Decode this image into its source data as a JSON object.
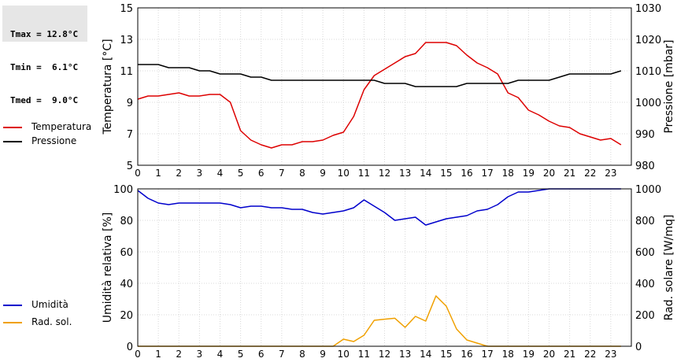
{
  "stats": {
    "tmax": "Tmax = 12.8°C",
    "tmin": "Tmin =  6.1°C",
    "tmed": "Tmed =  9.0°C"
  },
  "chart_data": [
    {
      "type": "line",
      "xlabel": "",
      "ylabel": "Temperatura [°C]",
      "ylabel_right": "Pressione [mbar]",
      "xlim": [
        0,
        24
      ],
      "ylim": [
        5,
        15
      ],
      "ylim_right": [
        980,
        1030
      ],
      "x_ticks": [
        "0",
        "1",
        "2",
        "3",
        "4",
        "5",
        "6",
        "7",
        "8",
        "9",
        "10",
        "11",
        "12",
        "13",
        "14",
        "15",
        "16",
        "17",
        "18",
        "19",
        "20",
        "21",
        "22",
        "23"
      ],
      "y_ticks": [
        "5",
        "7",
        "9",
        "11",
        "13",
        "15"
      ],
      "y_ticks_right": [
        "980",
        "990",
        "1000",
        "1010",
        "1020",
        "1030"
      ],
      "grid": true,
      "legend": "left",
      "series": [
        {
          "name": "Temperatura",
          "color": "#dd0000",
          "axis": "left",
          "x": [
            0,
            0.5,
            1,
            1.5,
            2,
            2.5,
            3,
            3.5,
            4,
            4.5,
            5,
            5.5,
            6,
            6.5,
            7,
            7.5,
            8,
            8.5,
            9,
            9.5,
            10,
            10.5,
            11,
            11.5,
            12,
            12.5,
            13,
            13.5,
            14,
            14.5,
            15,
            15.5,
            16,
            16.5,
            17,
            17.5,
            18,
            18.5,
            19,
            19.5,
            20,
            20.5,
            21,
            21.5,
            22,
            22.5,
            23,
            23.5
          ],
          "values": [
            9.2,
            9.4,
            9.4,
            9.5,
            9.6,
            9.4,
            9.4,
            9.5,
            9.5,
            9.0,
            7.2,
            6.6,
            6.3,
            6.1,
            6.3,
            6.3,
            6.5,
            6.5,
            6.6,
            6.9,
            7.1,
            8.1,
            9.8,
            10.7,
            11.1,
            11.5,
            11.9,
            12.1,
            12.8,
            12.8,
            12.8,
            12.6,
            12.0,
            11.5,
            11.2,
            10.8,
            9.6,
            9.3,
            8.5,
            8.2,
            7.8,
            7.5,
            7.4,
            7.0,
            6.8,
            6.6,
            6.7,
            6.3
          ]
        },
        {
          "name": "Pressione",
          "color": "#000000",
          "axis": "right",
          "x": [
            0,
            1,
            1.5,
            2,
            2.5,
            3,
            3.5,
            4,
            4.5,
            5,
            5.5,
            6,
            6.5,
            7,
            8,
            9,
            10,
            11,
            11.5,
            12,
            12.5,
            13,
            13.5,
            14,
            15,
            15.5,
            16,
            17,
            17.5,
            18,
            18.5,
            19,
            20,
            20.5,
            21,
            22,
            23,
            23.5
          ],
          "values": [
            1012,
            1012,
            1011,
            1011,
            1011,
            1010,
            1010,
            1009,
            1009,
            1009,
            1008,
            1008,
            1007,
            1007,
            1007,
            1007,
            1007,
            1007,
            1007,
            1006,
            1006,
            1006,
            1005,
            1005,
            1005,
            1005,
            1006,
            1006,
            1006,
            1006,
            1007,
            1007,
            1007,
            1008,
            1009,
            1009,
            1009,
            1010
          ]
        }
      ]
    },
    {
      "type": "line",
      "xlabel": "",
      "ylabel": "Umidità relativa [%]",
      "ylabel_right": "Rad. solare [W/mq]",
      "xlim": [
        0,
        24
      ],
      "ylim": [
        0,
        100
      ],
      "ylim_right": [
        0,
        1000
      ],
      "x_ticks": [
        "0",
        "1",
        "2",
        "3",
        "4",
        "5",
        "6",
        "7",
        "8",
        "9",
        "10",
        "11",
        "12",
        "13",
        "14",
        "15",
        "16",
        "17",
        "18",
        "19",
        "20",
        "21",
        "22",
        "23"
      ],
      "y_ticks": [
        "0",
        "20",
        "40",
        "60",
        "80",
        "100"
      ],
      "y_ticks_right": [
        "0",
        "200",
        "400",
        "600",
        "800",
        "1000"
      ],
      "grid": true,
      "legend": "left",
      "series": [
        {
          "name": "Umidità",
          "color": "#0000cc",
          "axis": "left",
          "x": [
            0,
            0.5,
            1,
            1.5,
            2,
            2.5,
            3,
            3.5,
            4,
            4.5,
            5,
            5.5,
            6,
            6.5,
            7,
            7.5,
            8,
            8.5,
            9,
            9.5,
            10,
            10.5,
            11,
            11.5,
            12,
            12.5,
            13,
            13.5,
            14,
            14.5,
            15,
            15.5,
            16,
            16.5,
            17,
            17.5,
            18,
            18.5,
            19,
            19.5,
            20,
            20.5,
            21,
            21.5,
            22,
            22.5,
            23,
            23.5
          ],
          "values": [
            99,
            94,
            91,
            90,
            91,
            91,
            91,
            91,
            91,
            90,
            88,
            89,
            89,
            88,
            88,
            87,
            87,
            85,
            84,
            85,
            86,
            88,
            93,
            89,
            85,
            80,
            81,
            82,
            77,
            79,
            81,
            82,
            83,
            86,
            87,
            90,
            95,
            98,
            98,
            99,
            100,
            100,
            100,
            100,
            100,
            100,
            100,
            100
          ]
        },
        {
          "name": "Rad. sol.",
          "color": "#f0a000",
          "axis": "right",
          "x": [
            0,
            1,
            2,
            3,
            4,
            5,
            6,
            7,
            8,
            9,
            9.5,
            10,
            10.5,
            11,
            11.5,
            12,
            12.5,
            13,
            13.5,
            14,
            14.5,
            15,
            15.5,
            16,
            16.5,
            17,
            18,
            19,
            20,
            21,
            22,
            23,
            23.5
          ],
          "values": [
            0,
            0,
            0,
            0,
            0,
            0,
            0,
            0,
            0,
            0,
            0,
            45,
            30,
            70,
            165,
            172,
            178,
            120,
            190,
            160,
            320,
            255,
            110,
            40,
            20,
            0,
            0,
            0,
            0,
            0,
            0,
            0,
            0
          ]
        }
      ]
    }
  ]
}
